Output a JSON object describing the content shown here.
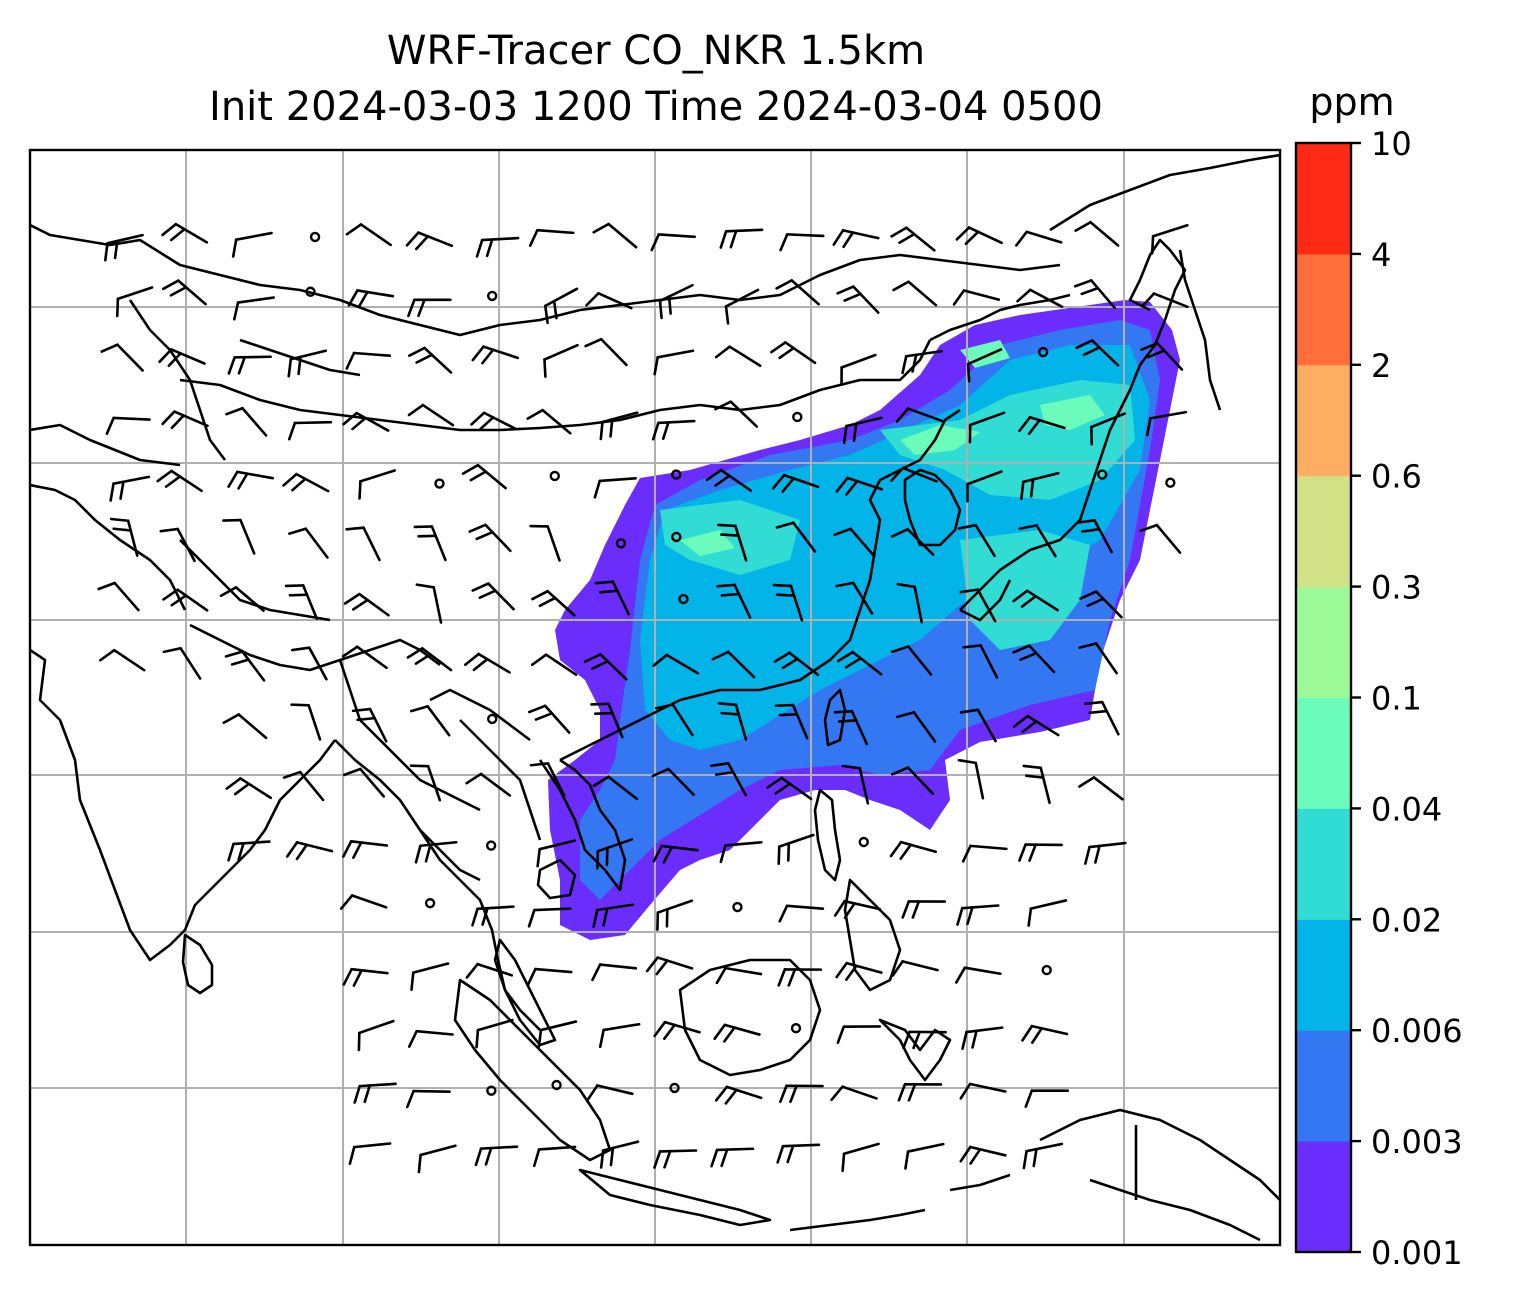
{
  "title_line1": "WRF-Tracer CO_NKR 1.5km",
  "title_line2": "Init 2024-03-03 1200 Time 2024-03-04 0500",
  "colorbar": {
    "unit": "ppm",
    "levels": [
      "0.001",
      "0.003",
      "0.006",
      "0.02",
      "0.04",
      "0.1",
      "0.3",
      "0.6",
      "2",
      "4",
      "10"
    ],
    "colors": [
      "#6a2dfb",
      "#3377f2",
      "#03b4e9",
      "#30dcd4",
      "#6bfcbc",
      "#9bf998",
      "#d2e186",
      "#feae62",
      "#ff6e3b",
      "#ff2a15"
    ]
  },
  "map": {
    "gridlines": true,
    "coastline_color": "#000000",
    "grid_color": "#b0b0b0",
    "overlay": "wind barbs"
  }
}
